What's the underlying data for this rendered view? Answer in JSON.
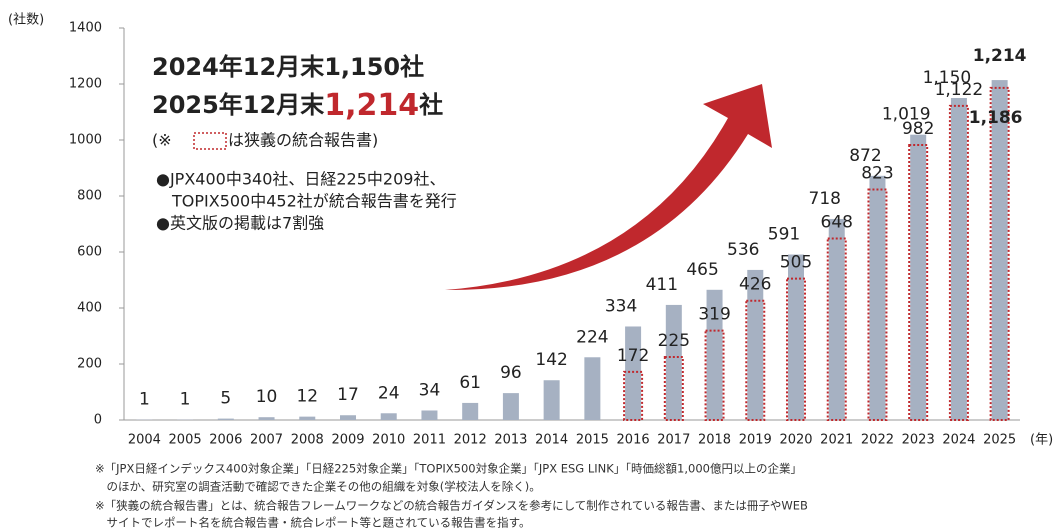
{
  "chart_data": {
    "type": "bar",
    "y_axis_label": "(社数)",
    "x_axis_label": "(年)",
    "categories": [
      "2004",
      "2005",
      "2006",
      "2007",
      "2008",
      "2009",
      "2010",
      "2011",
      "2012",
      "2013",
      "2014",
      "2015",
      "2016",
      "2017",
      "2018",
      "2019",
      "2020",
      "2021",
      "2022",
      "2023",
      "2024",
      "2025"
    ],
    "series": [
      {
        "color": "#a6b1c2",
        "values": [
          1,
          1,
          5,
          10,
          12,
          17,
          24,
          34,
          61,
          96,
          142,
          224,
          334,
          411,
          465,
          536,
          591,
          718,
          872,
          1019,
          1150,
          1214
        ],
        "value_labels": [
          "1",
          "1",
          "5",
          "10",
          "12",
          "17",
          "24",
          "34",
          "61",
          "96",
          "142",
          "224",
          "334",
          "411",
          "465",
          "536",
          "591",
          "718",
          "872",
          "1,019",
          "1,150",
          "1,214"
        ]
      },
      {
        "color": "#c0282d",
        "style": "dotted",
        "values": [
          null,
          null,
          null,
          null,
          null,
          null,
          null,
          null,
          null,
          null,
          null,
          null,
          172,
          225,
          319,
          426,
          505,
          648,
          823,
          982,
          1122,
          1186
        ],
        "value_labels": [
          null,
          null,
          null,
          null,
          null,
          null,
          null,
          null,
          null,
          null,
          null,
          null,
          "172",
          "225",
          "319",
          "426",
          "505",
          "648",
          "823",
          "982",
          "1,122",
          "1,186"
        ]
      }
    ],
    "ylim": [
      0,
      1400
    ],
    "yticks": [
      0,
      200,
      400,
      600,
      800,
      1000,
      1200,
      1400
    ],
    "annotation": {
      "line1": "2024年12月末1,150社",
      "line2": [
        "2025年12月末",
        "1,214",
        "社"
      ],
      "legend_note": [
        "(※ ",
        "は狭義の統合報告書)"
      ],
      "bullets": [
        "●JPX400中340社、日経225中209社、",
        "TOPIX500中452社が統合報告書を発行",
        "●英文版の掲載は7割強"
      ]
    },
    "footnotes": [
      "※「JPX日経インデックス400対象企業」「日経225対象企業」「TOPIX500対象企業」「JPX ESG LINK」「時価総額1,000億円以上の企業」",
      "　のほか、研究室の調査活動で確認できた企業その他の組織を対象(学校法人を除く)。",
      "※「狭義の統合報告書」とは、統合報告フレームワークなどの統合報告ガイダンスを参考にして制作されている報告書、または冊子やWEB",
      "　サイトでレポート名を統合報告書・統合レポート等と題されている報告書を指す。"
    ]
  }
}
